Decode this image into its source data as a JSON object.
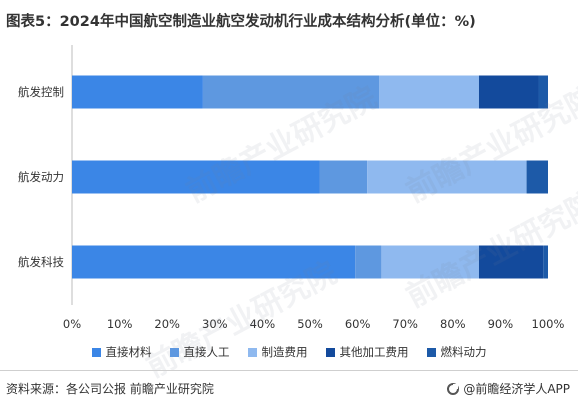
{
  "title": "图表5：2024年中国航空制造业航空发动机行业成本结构分析(单位：%)",
  "source_text": "资料来源：各公司公报 前瞻产业研究院",
  "brand_text": "@前瞻经济学人APP",
  "watermark_text": "前瞻产业研究院",
  "colors": {
    "直接材料": "#3b86e6",
    "直接人工": "#5e98e0",
    "制造费用": "#8fb9ef",
    "其他加工费用": "#134a9c",
    "燃料动力": "#1d5aa8"
  },
  "chart_data": {
    "type": "bar",
    "orientation": "horizontal",
    "stacked": true,
    "categories": [
      "航发控制",
      "航发动力",
      "航发科技"
    ],
    "series": [
      {
        "name": "直接材料",
        "values": [
          27.5,
          52,
          59.5
        ]
      },
      {
        "name": "直接人工",
        "values": [
          37,
          10,
          5.5
        ]
      },
      {
        "name": "制造费用",
        "values": [
          21,
          33.5,
          20.5
        ]
      },
      {
        "name": "其他加工费用",
        "values": [
          12.5,
          0,
          13.5
        ]
      },
      {
        "name": "燃料动力",
        "values": [
          2,
          4.5,
          1
        ]
      }
    ],
    "xlim": [
      0,
      100
    ],
    "xticks": [
      "0%",
      "10%",
      "20%",
      "30%",
      "40%",
      "50%",
      "60%",
      "70%",
      "80%",
      "90%",
      "100%"
    ],
    "legend_position": "bottom",
    "grid": false
  }
}
